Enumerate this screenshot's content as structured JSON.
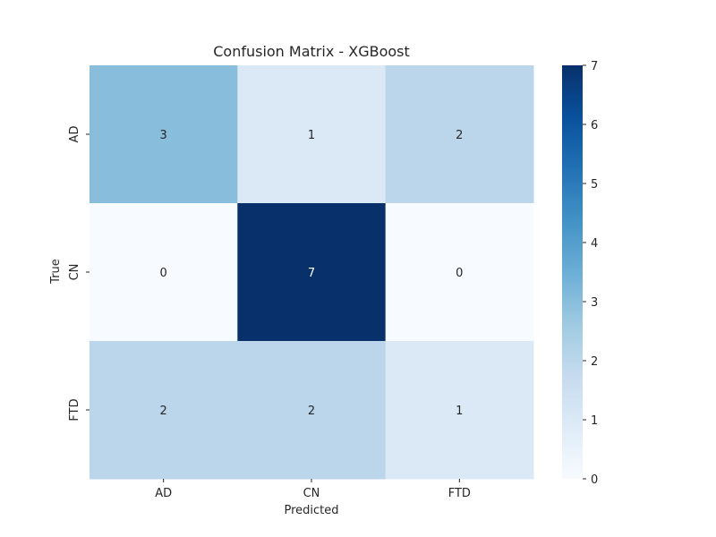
{
  "chart_data": {
    "type": "heatmap",
    "title": "Confusion Matrix - XGBoost",
    "xlabel": "Predicted",
    "ylabel": "True",
    "x_categories": [
      "AD",
      "CN",
      "FTD"
    ],
    "y_categories": [
      "AD",
      "CN",
      "FTD"
    ],
    "values": [
      [
        3,
        1,
        2
      ],
      [
        0,
        7,
        0
      ],
      [
        2,
        2,
        1
      ]
    ],
    "colormap": "Blues",
    "colorbar": {
      "min": 0,
      "max": 7,
      "ticks": [
        "0",
        "1",
        "2",
        "3",
        "4",
        "5",
        "6",
        "7"
      ]
    },
    "annotations": true,
    "grid": false
  }
}
